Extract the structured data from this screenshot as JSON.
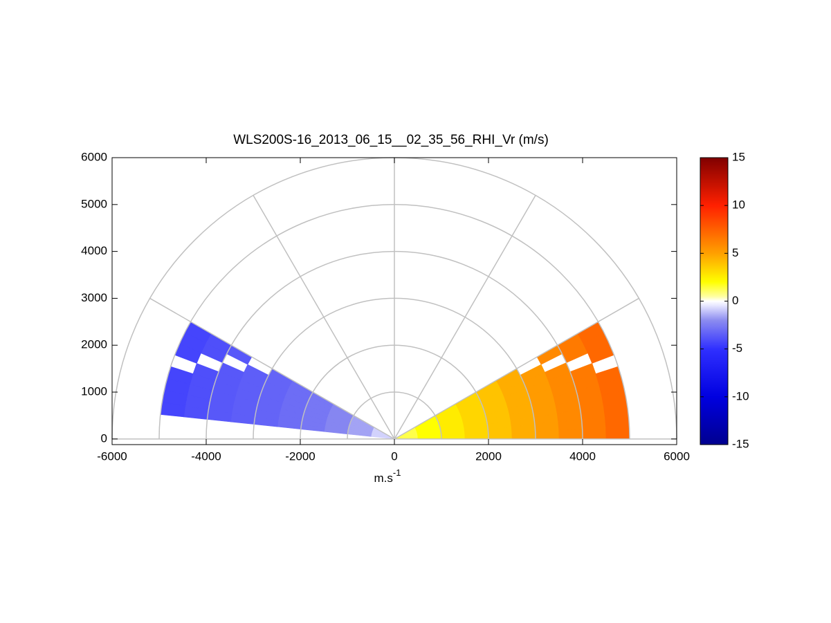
{
  "chart_data": {
    "type": "polar-rhi",
    "title": "WLS200S-16_2013_06_15__02_35_56_RHI_Vr (m/s)",
    "xlabel": "m.s",
    "xlabel_superscript": "-1",
    "xlim": [
      -6000,
      6000
    ],
    "ylim": [
      -120,
      6000
    ],
    "xticks": [
      -6000,
      -4000,
      -2000,
      0,
      2000,
      4000,
      6000
    ],
    "yticks": [
      0,
      1000,
      2000,
      3000,
      4000,
      5000,
      6000
    ],
    "range_rings": [
      1000,
      2000,
      3000,
      4000,
      5000,
      6000
    ],
    "spoke_angles": [
      0,
      30,
      60,
      90,
      120,
      150,
      180
    ],
    "gate_length": 500,
    "beam_width": 3,
    "angles": [
      1.5,
      4.5,
      7.5,
      10.5,
      13.5,
      16.5,
      19.5,
      22.5,
      25.5,
      28.5,
      151.5,
      154.5,
      157.5,
      160.5,
      163.5,
      166.5,
      169.5,
      172.5,
      175.5,
      178.5
    ],
    "ranges": [
      250,
      750,
      1250,
      1750,
      2250,
      2750,
      3250,
      3750,
      4250,
      4750
    ],
    "values": [
      [
        1.3,
        2.0,
        2.6,
        3.3,
        3.9,
        4.6,
        5.2,
        5.9,
        6.5,
        7.2
      ],
      [
        1.3,
        2.0,
        2.6,
        3.3,
        3.9,
        4.6,
        5.2,
        5.9,
        6.5,
        7.2
      ],
      [
        1.3,
        2.0,
        2.6,
        3.3,
        3.9,
        4.6,
        5.2,
        5.9,
        6.5,
        7.2
      ],
      [
        1.3,
        2.0,
        2.6,
        3.3,
        3.9,
        4.6,
        5.2,
        5.9,
        6.5,
        7.2
      ],
      [
        1.3,
        2.0,
        2.6,
        3.3,
        3.9,
        4.6,
        5.2,
        5.9,
        6.5,
        7.2
      ],
      [
        1.3,
        2.0,
        2.6,
        3.3,
        3.9,
        4.6,
        5.2,
        5.9,
        6.5,
        7.2
      ],
      [
        1.3,
        2.0,
        2.6,
        3.3,
        3.9,
        4.6,
        5.2,
        5.9,
        6.5,
        null
      ],
      [
        1.3,
        2.0,
        2.6,
        3.3,
        3.9,
        4.6,
        5.2,
        5.9,
        null,
        7.2
      ],
      [
        1.3,
        2.0,
        2.6,
        3.3,
        3.9,
        4.6,
        5.2,
        null,
        6.5,
        7.2
      ],
      [
        1.3,
        2.0,
        2.6,
        3.3,
        3.9,
        4.6,
        null,
        5.9,
        6.5,
        7.2
      ],
      [
        -0.8,
        -1.6,
        -2.2,
        -2.7,
        -3.0,
        -3.3,
        null,
        -3.7,
        -4.0,
        -4.3
      ],
      [
        -0.8,
        -1.6,
        -2.2,
        -2.7,
        -3.0,
        -3.3,
        -3.5,
        null,
        -4.0,
        -4.3
      ],
      [
        -0.8,
        -1.6,
        -2.2,
        -2.7,
        -3.0,
        -3.3,
        -3.5,
        -3.7,
        null,
        -4.3
      ],
      [
        -0.8,
        -1.6,
        -2.2,
        -2.7,
        -3.0,
        -3.3,
        -3.5,
        -3.7,
        -4.0,
        null
      ],
      [
        -0.8,
        -1.6,
        -2.2,
        -2.7,
        -3.0,
        -3.3,
        -3.5,
        -3.7,
        -4.0,
        -4.3
      ],
      [
        -0.8,
        -1.6,
        -2.2,
        -2.7,
        -3.0,
        -3.3,
        -3.5,
        -3.7,
        -4.0,
        -4.3
      ],
      [
        -0.8,
        -1.6,
        -2.2,
        -2.7,
        -3.0,
        -3.3,
        -3.5,
        -3.7,
        -4.0,
        -4.3
      ],
      [
        -0.8,
        -1.6,
        -2.2,
        -2.7,
        -3.0,
        -3.3,
        -3.5,
        -3.7,
        -4.0,
        -4.3
      ],
      [
        null,
        null,
        null,
        null,
        null,
        null,
        null,
        null,
        null,
        null
      ],
      [
        null,
        null,
        null,
        null,
        null,
        null,
        null,
        null,
        null,
        null
      ]
    ],
    "clim": [
      -15,
      15
    ],
    "colorbar_ticks": [
      -15,
      -10,
      -5,
      0,
      5,
      10,
      15
    ],
    "colormap": [
      [
        -15,
        "#00008f"
      ],
      [
        -10,
        "#0000e0"
      ],
      [
        -5,
        "#3030ff"
      ],
      [
        -2,
        "#8c8cf0"
      ],
      [
        -0.5,
        "#e4e4ff"
      ],
      [
        0,
        "#ffffff"
      ],
      [
        0.5,
        "#ffffa0"
      ],
      [
        2,
        "#ffff00"
      ],
      [
        5,
        "#ffa000"
      ],
      [
        10,
        "#ff2000"
      ],
      [
        15,
        "#800000"
      ]
    ],
    "grid_color": "#c0c0c0"
  }
}
